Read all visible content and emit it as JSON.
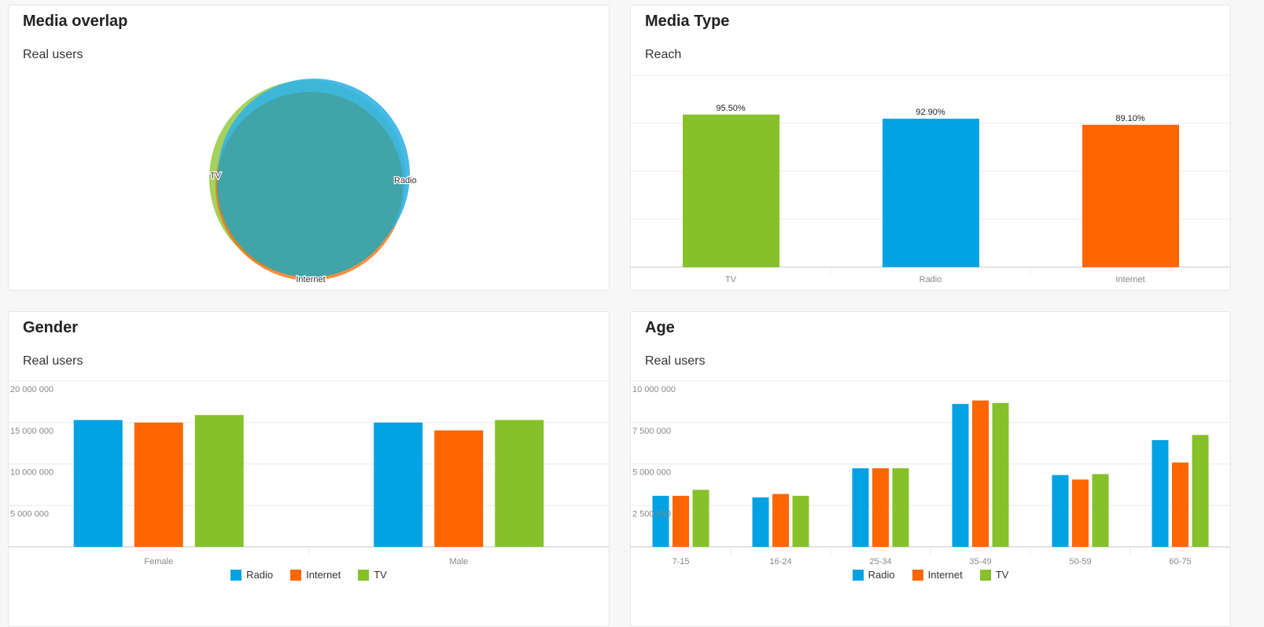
{
  "colors": {
    "Radio": "#00a2e3",
    "Internet": "#ff6600",
    "TV": "#86c12a",
    "overlap": "#40a4a8",
    "grid": "#ececec",
    "axis_text": "#888888"
  },
  "panels": {
    "overlap": {
      "title": "Media overlap",
      "subtitle": "Real users"
    },
    "media_type": {
      "title": "Media Type",
      "subtitle": "Reach"
    },
    "gender": {
      "title": "Gender",
      "subtitle": "Real users"
    },
    "age": {
      "title": "Age",
      "subtitle": "Real users"
    }
  },
  "chart_data": [
    {
      "id": "overlap",
      "type": "venn",
      "title": "Media overlap",
      "subtitle": "Real users",
      "sets": [
        "TV",
        "Radio",
        "Internet"
      ],
      "labels": [
        "TV",
        "Radio",
        "Internet"
      ]
    },
    {
      "id": "media_type",
      "type": "bar",
      "title": "Media Type",
      "subtitle": "Reach",
      "categories": [
        "TV",
        "Radio",
        "Internet"
      ],
      "values": [
        95.5,
        92.9,
        89.1
      ],
      "value_labels": [
        "95.50%",
        "92.90%",
        "89.10%"
      ],
      "ylim": [
        0,
        120
      ],
      "grid": true
    },
    {
      "id": "gender",
      "type": "bar",
      "title": "Gender",
      "subtitle": "Real users",
      "categories": [
        "Female",
        "Male"
      ],
      "series": [
        {
          "name": "Radio",
          "values": [
            15300000,
            15000000
          ]
        },
        {
          "name": "Internet",
          "values": [
            15000000,
            14050000
          ]
        },
        {
          "name": "TV",
          "values": [
            15900000,
            15300000
          ]
        }
      ],
      "ylim": [
        0,
        20000000
      ],
      "yticks": [
        "5 000 000",
        "10 000 000",
        "15 000 000",
        "20 000 000"
      ],
      "legend": "bottom",
      "grid": true
    },
    {
      "id": "age",
      "type": "bar",
      "title": "Age",
      "subtitle": "Real users",
      "categories": [
        "7-15",
        "16-24",
        "25-34",
        "35-49",
        "50-59",
        "60-75"
      ],
      "series": [
        {
          "name": "Radio",
          "values": [
            3080000,
            2980000,
            4740000,
            8620000,
            4330000,
            6440000
          ]
        },
        {
          "name": "Internet",
          "values": [
            3080000,
            3190000,
            4740000,
            8830000,
            4060000,
            5090000
          ]
        },
        {
          "name": "TV",
          "values": [
            3440000,
            3080000,
            4740000,
            8680000,
            4390000,
            6750000
          ]
        }
      ],
      "ylim": [
        0,
        10000000
      ],
      "yticks": [
        "2 500 000",
        "5 000 000",
        "7 500 000",
        "10 000 000"
      ],
      "legend": "bottom",
      "grid": true
    }
  ],
  "legend": [
    "Radio",
    "Internet",
    "TV"
  ]
}
